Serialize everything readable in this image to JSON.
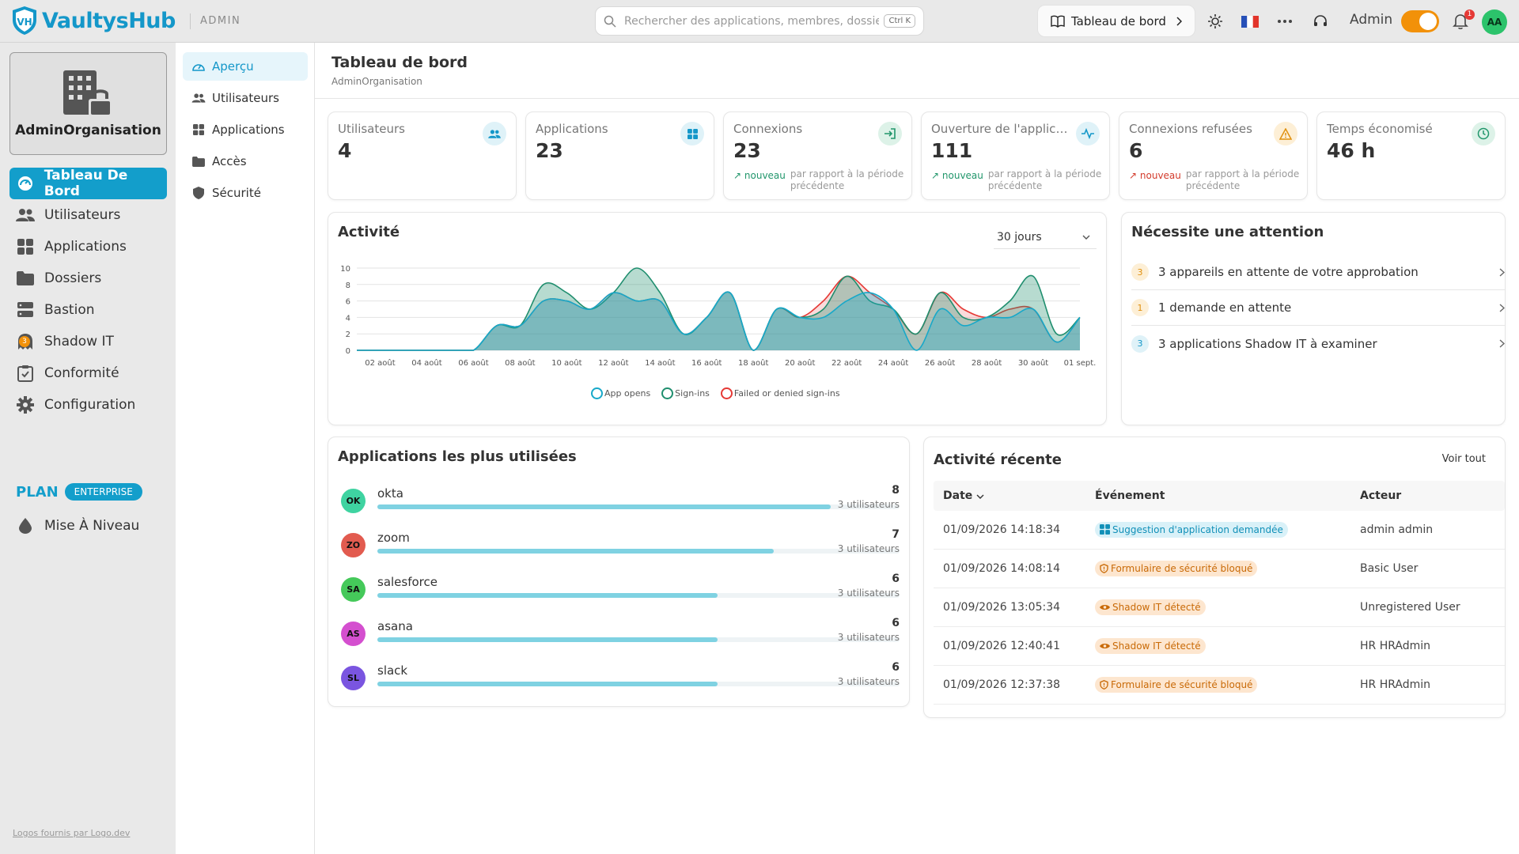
{
  "app": {
    "name": "VaultysHub",
    "mode": "ADMIN"
  },
  "search": {
    "placeholder": "Rechercher des applications, membres, dossiers...",
    "shortcut": "Ctrl K"
  },
  "topbar": {
    "dashboard_button": "Tableau de bord",
    "admin_label": "Admin",
    "notif_count": "1",
    "avatar": "AA"
  },
  "sidebar": {
    "org_name": "AdminOrganisation",
    "items": [
      {
        "label": "Tableau De Bord",
        "icon": "dashboard-icon"
      },
      {
        "label": "Utilisateurs",
        "icon": "users-icon"
      },
      {
        "label": "Applications",
        "icon": "apps-grid-icon"
      },
      {
        "label": "Dossiers",
        "icon": "folder-icon"
      },
      {
        "label": "Bastion",
        "icon": "server-icon"
      },
      {
        "label": "Shadow IT",
        "icon": "ghost-icon",
        "badge": "3"
      },
      {
        "label": "Conformité",
        "icon": "clipboard-check-icon"
      },
      {
        "label": "Configuration",
        "icon": "gear-icon"
      }
    ],
    "plan_label": "PLAN",
    "plan_badge": "ENTERPRISE",
    "upgrade": "Mise À Niveau",
    "footer": "Logos fournis par Logo.dev"
  },
  "subnav": {
    "items": [
      {
        "label": "Aperçu"
      },
      {
        "label": "Utilisateurs"
      },
      {
        "label": "Applications"
      },
      {
        "label": "Accès"
      },
      {
        "label": "Sécurité"
      }
    ]
  },
  "page": {
    "title": "Tableau de bord",
    "subtitle": "AdminOrganisation"
  },
  "kpis": [
    {
      "label": "Utilisateurs",
      "value": "4",
      "icon": "users-icon",
      "color": "#1497c9",
      "bg": "#dff2f8"
    },
    {
      "label": "Applications",
      "value": "23",
      "icon": "apps-grid-icon",
      "color": "#1497c9",
      "bg": "#dff2f8"
    },
    {
      "label": "Connexions",
      "value": "23",
      "icon": "login-icon",
      "color": "#21966b",
      "bg": "#ddf2e8",
      "trend": "nouveau",
      "trend_color": "#21966b",
      "compare": "par rapport à la période précédente"
    },
    {
      "label": "Ouverture de l'applicati...",
      "value": "111",
      "icon": "activity-icon",
      "color": "#1497c9",
      "bg": "#dff2f8",
      "trend": "nouveau",
      "trend_color": "#21966b",
      "compare": "par rapport à la période précédente"
    },
    {
      "label": "Connexions refusées",
      "value": "6",
      "icon": "warning-icon",
      "color": "#e0900f",
      "bg": "#fdefd6",
      "trend": "nouveau",
      "trend_color": "#d33b2c",
      "compare": "par rapport à la période précédente"
    },
    {
      "label": "Temps économisé",
      "value": "46 h",
      "icon": "clock-icon",
      "color": "#21966b",
      "bg": "#ddf2e8"
    }
  ],
  "activity": {
    "title": "Activité",
    "range": "30 jours"
  },
  "chart_data": {
    "type": "area",
    "x": [
      "01 août",
      "02 août",
      "03 août",
      "04 août",
      "05 août",
      "06 août",
      "07 août",
      "08 août",
      "09 août",
      "10 août",
      "11 août",
      "12 août",
      "13 août",
      "14 août",
      "15 août",
      "16 août",
      "17 août",
      "18 août",
      "19 août",
      "20 août",
      "21 août",
      "22 août",
      "23 août",
      "24 août",
      "25 août",
      "26 août",
      "27 août",
      "28 août",
      "29 août",
      "30 août",
      "31 août",
      "01 sept."
    ],
    "tick_labels": [
      "02 août",
      "04 août",
      "06 août",
      "08 août",
      "10 août",
      "12 août",
      "14 août",
      "16 août",
      "18 août",
      "20 août",
      "22 août",
      "24 août",
      "26 août",
      "28 août",
      "30 août",
      "01 sept."
    ],
    "series": [
      {
        "name": "App opens",
        "color": "#17a8c9",
        "values": [
          0,
          0,
          0,
          0,
          0,
          0,
          3,
          3,
          6,
          6,
          5,
          7,
          6,
          6,
          2,
          4,
          7,
          0,
          5,
          4,
          4,
          6,
          7,
          5,
          0,
          5,
          3,
          4,
          4,
          5,
          1,
          4
        ]
      },
      {
        "name": "Sign-ins",
        "color": "#1f8e6e",
        "values": [
          0,
          0,
          0,
          0,
          0,
          0,
          3,
          3,
          8,
          7,
          5,
          7,
          10,
          7,
          2,
          4,
          7,
          0,
          5,
          4,
          5,
          9,
          6,
          5,
          2,
          7,
          4,
          4,
          6,
          9,
          2,
          4
        ]
      },
      {
        "name": "Failed or denied sign-ins",
        "color": "#e53935",
        "values": [
          0,
          0,
          0,
          0,
          0,
          0,
          3,
          3,
          6,
          6,
          5,
          7,
          6,
          6,
          2,
          4,
          7,
          0,
          5,
          4,
          6,
          9,
          7,
          5,
          2,
          7,
          5,
          4,
          5,
          5,
          1,
          4
        ]
      }
    ],
    "ylim": [
      0,
      10
    ],
    "yticks": [
      0,
      2,
      4,
      6,
      8,
      10
    ],
    "grid": true,
    "legend": "bottom-center"
  },
  "attention": {
    "title": "Nécessite une attention",
    "items": [
      {
        "count": "3",
        "label": "3 appareils en attente de votre approbation",
        "color": "#e0900f",
        "bg": "#fdefd6"
      },
      {
        "count": "1",
        "label": "1 demande en attente",
        "color": "#e0900f",
        "bg": "#fdefd6"
      },
      {
        "count": "3",
        "label": "3 applications Shadow IT à examiner",
        "color": "#1497c9",
        "bg": "#dff2f8"
      }
    ]
  },
  "top_apps": {
    "title": "Applications les plus utilisées",
    "items": [
      {
        "initials": "OK",
        "name": "okta",
        "count": "8",
        "users": "3 utilisateurs",
        "share": 1.0,
        "color": "#3fd3a1"
      },
      {
        "initials": "ZO",
        "name": "zoom",
        "count": "7",
        "users": "3 utilisateurs",
        "share": 0.875,
        "color": "#e25b4f"
      },
      {
        "initials": "SA",
        "name": "salesforce",
        "count": "6",
        "users": "3 utilisateurs",
        "share": 0.75,
        "color": "#45c95a"
      },
      {
        "initials": "AS",
        "name": "asana",
        "count": "6",
        "users": "3 utilisateurs",
        "share": 0.75,
        "color": "#d44fcf"
      },
      {
        "initials": "SL",
        "name": "slack",
        "count": "6",
        "users": "3 utilisateurs",
        "share": 0.75,
        "color": "#7a55e0"
      }
    ]
  },
  "recent": {
    "title": "Activité récente",
    "see_all": "Voir tout",
    "columns": [
      "Date",
      "Événement",
      "Acteur"
    ],
    "rows": [
      {
        "date": "01/09/2026 14:18:34",
        "event": "Suggestion d'application demandée",
        "type": "blue",
        "icon": "apps-grid-icon",
        "actor": "admin admin"
      },
      {
        "date": "01/09/2026 14:08:14",
        "event": "Formulaire de sécurité bloqué",
        "type": "orange",
        "icon": "shield-icon",
        "actor": "Basic User"
      },
      {
        "date": "01/09/2026 13:05:34",
        "event": "Shadow IT détecté",
        "type": "orange",
        "icon": "eye-icon",
        "actor": "Unregistered User"
      },
      {
        "date": "01/09/2026 12:40:41",
        "event": "Shadow IT détecté",
        "type": "orange",
        "icon": "eye-icon",
        "actor": "HR HRAdmin"
      },
      {
        "date": "01/09/2026 12:37:38",
        "event": "Formulaire de sécurité bloqué",
        "type": "orange",
        "icon": "shield-icon",
        "actor": "HR HRAdmin"
      }
    ]
  }
}
